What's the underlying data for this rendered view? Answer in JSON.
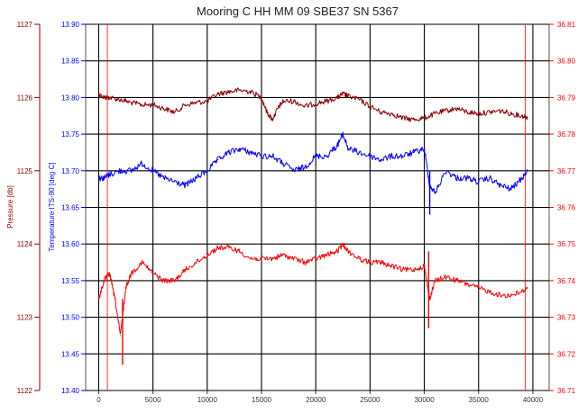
{
  "chart_data": {
    "type": "line",
    "title": "Mooring C HH MM 09 SBE37 SN 5367",
    "colors": {
      "pressure": "#8b0000",
      "temperature": "#0000ff",
      "third": "#ff0000",
      "grid": "#000000",
      "background": "#ffffff"
    },
    "x": {
      "ticks": [
        "0",
        "5000",
        "10000",
        "15000",
        "20000",
        "25000",
        "30000",
        "35000",
        "40000"
      ],
      "range": [
        -1200,
        41500
      ],
      "grid": true
    },
    "axes": {
      "pressure": {
        "label": "Pressure [db]",
        "ticks": [
          "1127",
          "1126",
          "1125",
          "1124",
          "1123",
          "1122"
        ],
        "range": [
          1122,
          1127
        ]
      },
      "temperature": {
        "label": "Temperature ITS-90 [deg C]",
        "ticks": [
          "13.90",
          "13.85",
          "13.80",
          "13.75",
          "13.70",
          "13.65",
          "13.60",
          "13.55",
          "13.50",
          "13.45",
          "13.40"
        ],
        "range": [
          13.4,
          13.9
        ]
      },
      "third": {
        "label": "",
        "ticks": [
          "36.81",
          "36.80",
          "36.79",
          "36.78",
          "36.77",
          "36.76",
          "36.75",
          "36.74",
          "36.73",
          "36.72",
          "36.71"
        ],
        "range": [
          36.71,
          36.81
        ]
      }
    },
    "series": [
      {
        "name": "Pressure [db]",
        "axis": "pressure",
        "x": [
          0,
          500,
          1000,
          2000,
          3000,
          4000,
          5000,
          6000,
          7000,
          8000,
          9000,
          10000,
          11000,
          12000,
          13000,
          14000,
          15000,
          15500,
          16000,
          16500,
          17000,
          18000,
          19000,
          20000,
          21000,
          22000,
          22500,
          23000,
          24000,
          25000,
          26000,
          27000,
          28000,
          29000,
          30000,
          31000,
          32000,
          33000,
          34000,
          35000,
          36000,
          37000,
          38000,
          39000,
          39500
        ],
        "values": [
          1126.05,
          1126.0,
          1126.0,
          1125.97,
          1125.93,
          1125.9,
          1125.9,
          1125.85,
          1125.8,
          1125.9,
          1125.93,
          1125.95,
          1126.05,
          1126.08,
          1126.1,
          1126.08,
          1126.0,
          1125.8,
          1125.7,
          1125.85,
          1125.95,
          1125.95,
          1125.88,
          1125.92,
          1125.95,
          1126.0,
          1126.05,
          1126.02,
          1125.97,
          1125.88,
          1125.8,
          1125.78,
          1125.72,
          1125.7,
          1125.72,
          1125.78,
          1125.82,
          1125.85,
          1125.8,
          1125.78,
          1125.8,
          1125.82,
          1125.78,
          1125.75,
          1125.73
        ]
      },
      {
        "name": "Temperature ITS-90 [deg C]",
        "axis": "temperature",
        "x": [
          0,
          500,
          1000,
          2000,
          3000,
          4000,
          5000,
          6000,
          7000,
          8000,
          9000,
          10000,
          11000,
          12000,
          13000,
          14000,
          15000,
          16000,
          17000,
          18000,
          19000,
          20000,
          21000,
          22000,
          22500,
          23000,
          24000,
          25000,
          26000,
          27000,
          28000,
          29000,
          30000,
          30500,
          31000,
          32000,
          33000,
          34000,
          35000,
          36000,
          37000,
          38000,
          39000,
          39500
        ],
        "values": [
          13.69,
          13.69,
          13.695,
          13.7,
          13.7,
          13.71,
          13.7,
          13.69,
          13.685,
          13.68,
          13.69,
          13.7,
          13.715,
          13.725,
          13.73,
          13.725,
          13.72,
          13.72,
          13.71,
          13.7,
          13.705,
          13.72,
          13.72,
          13.735,
          13.75,
          13.73,
          13.725,
          13.72,
          13.715,
          13.72,
          13.72,
          13.725,
          13.73,
          13.68,
          13.67,
          13.7,
          13.69,
          13.69,
          13.685,
          13.69,
          13.68,
          13.675,
          13.69,
          13.7
        ]
      },
      {
        "name": "",
        "axis": "third",
        "x": [
          0,
          500,
          1000,
          1500,
          2000,
          2500,
          3000,
          4000,
          5000,
          6000,
          7000,
          8000,
          9000,
          10000,
          11000,
          12000,
          13000,
          14000,
          15000,
          16000,
          17000,
          18000,
          19000,
          20000,
          21000,
          22000,
          22500,
          23000,
          24000,
          25000,
          26000,
          27000,
          28000,
          29000,
          30000,
          30500,
          31000,
          32000,
          33000,
          34000,
          35000,
          36000,
          37000,
          38000,
          39000,
          39500
        ],
        "values": [
          36.735,
          36.74,
          36.742,
          36.735,
          36.725,
          36.738,
          36.742,
          36.745,
          36.742,
          36.74,
          36.74,
          36.743,
          36.745,
          36.747,
          36.749,
          36.749,
          36.748,
          36.746,
          36.746,
          36.746,
          36.747,
          36.746,
          36.745,
          36.746,
          36.747,
          36.748,
          36.75,
          36.748,
          36.746,
          36.745,
          36.745,
          36.744,
          36.743,
          36.743,
          36.744,
          36.735,
          36.74,
          36.741,
          36.74,
          36.739,
          36.738,
          36.737,
          36.736,
          36.736,
          36.737,
          36.738
        ]
      }
    ],
    "spikes": [
      {
        "axis": "third",
        "x": 2200,
        "low": 36.717,
        "high": 36.735
      },
      {
        "axis": "third",
        "x": 30400,
        "low": 36.727,
        "high": 36.748
      },
      {
        "axis": "temperature",
        "x": 30500,
        "low": 13.64,
        "high": 13.7
      }
    ],
    "markers": [
      {
        "axis": "third",
        "x": 800,
        "low": 36.71,
        "high": 36.81
      },
      {
        "axis": "third",
        "x": 39300,
        "low": 36.71,
        "high": 36.81
      }
    ],
    "legend": "none",
    "grid": true
  }
}
